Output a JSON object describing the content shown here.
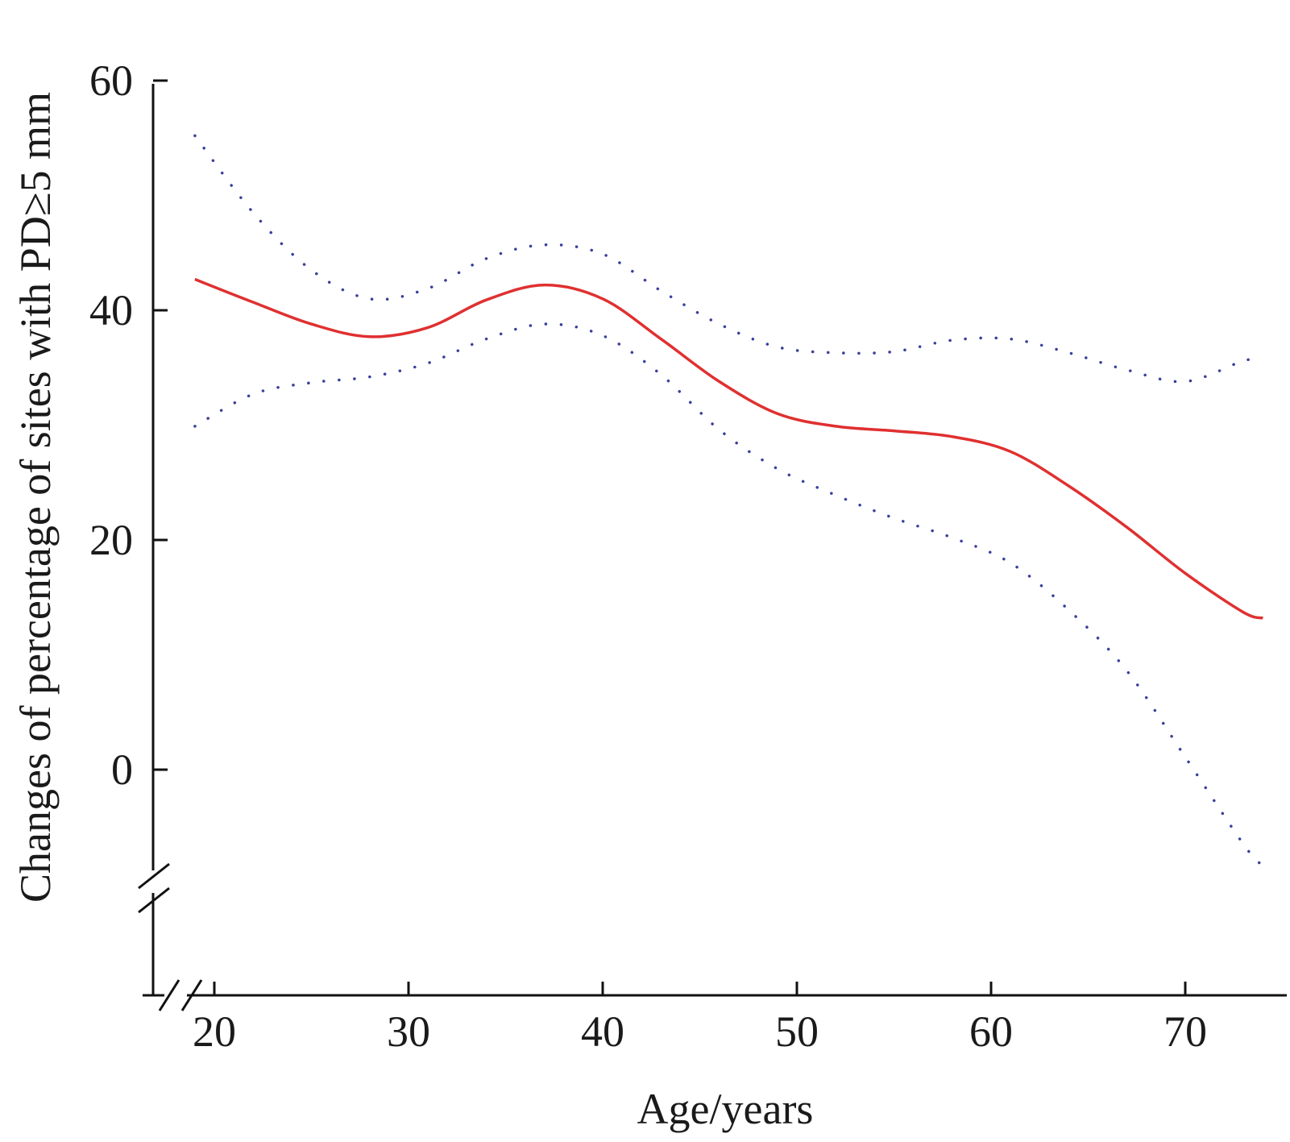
{
  "chart_data": {
    "type": "line",
    "title": "",
    "xlabel": "Age/years",
    "ylabel": "Changes of percentage of sites with PD≥5 mm",
    "xlim": [
      19,
      75
    ],
    "ylim": [
      -20,
      60
    ],
    "x_ticks": [
      20,
      30,
      40,
      50,
      60,
      70
    ],
    "y_ticks": [
      0,
      20,
      40,
      60
    ],
    "axis_breaks": [
      "x",
      "y"
    ],
    "grid": false,
    "legend": "none",
    "series": [
      {
        "style": "solid",
        "color": "#e03030",
        "x": [
          19,
          22,
          25,
          28,
          31,
          34,
          37,
          40,
          43,
          46,
          49,
          52,
          55,
          58,
          61,
          64,
          67,
          70,
          73,
          74
        ],
        "y": [
          42.7,
          40.7,
          38.8,
          37.7,
          38.5,
          40.9,
          42.2,
          41.0,
          37.5,
          33.8,
          31.0,
          29.9,
          29.5,
          29.0,
          27.7,
          24.7,
          21.1,
          17.1,
          13.7,
          13.2
        ]
      },
      {
        "style": "dotted",
        "color": "#3a3f9c",
        "x": [
          19,
          22,
          25,
          28,
          31,
          34,
          37,
          40,
          43,
          46,
          49,
          52,
          55,
          58,
          61,
          64,
          67,
          70,
          73,
          74
        ],
        "y": [
          55.2,
          48.5,
          43.5,
          41.0,
          41.9,
          44.5,
          45.7,
          44.9,
          41.7,
          38.8,
          36.8,
          36.3,
          36.4,
          37.4,
          37.5,
          36.3,
          34.8,
          33.8,
          35.6,
          35.7
        ]
      },
      {
        "style": "dotted",
        "color": "#3a3f9c",
        "x": [
          19,
          22,
          25,
          28,
          31,
          34,
          37,
          40,
          43,
          46,
          49,
          52,
          55,
          58,
          61,
          64,
          67,
          70,
          73,
          74
        ],
        "y": [
          29.9,
          32.7,
          33.7,
          34.2,
          35.4,
          37.5,
          38.8,
          37.8,
          34.4,
          29.6,
          26.2,
          23.9,
          21.9,
          20.2,
          18.0,
          13.9,
          8.6,
          1.1,
          -6.5,
          -8.4
        ]
      }
    ]
  }
}
